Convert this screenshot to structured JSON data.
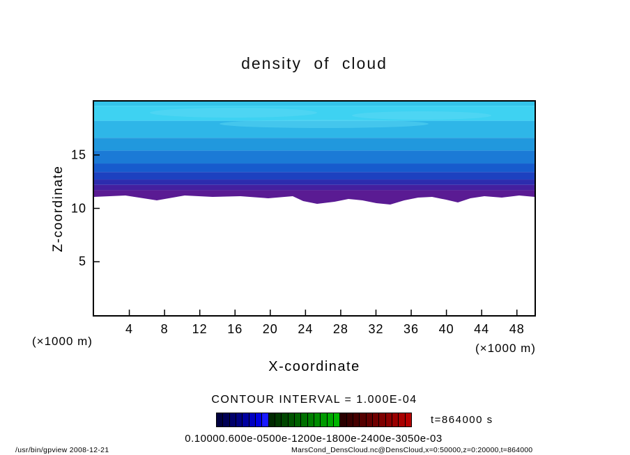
{
  "title": "density of cloud",
  "chart_data": {
    "type": "filled_contour",
    "title": "density of cloud",
    "xlabel": "X-coordinate",
    "ylabel": "Z-coordinate",
    "x_axis_units_left": "(×1000 m)",
    "x_axis_units_right": "(×1000 m)",
    "xlim": [
      0,
      50
    ],
    "ylim": [
      0,
      20
    ],
    "x_ticks": [
      4,
      8,
      12,
      16,
      20,
      24,
      28,
      32,
      36,
      40,
      44,
      48
    ],
    "y_ticks": [
      5,
      10,
      15
    ],
    "contour_interval_label": "CONTOUR INTERVAL = 1.000E-04",
    "time_label": "t=864000 s",
    "field_summary": "Cloud density layer spanning the full x range (0-50 ×1000 m) between z≈11 and z=20 (×1000 m). Density increases downward: ~1e-4 (light cyan) near the top z=20, through blue mid-levels, to ~1e-3 (dark violet) at the sharp, slightly wavy cloud base near z≈11; zero (white) below.",
    "bands": [
      {
        "z_top": 20.0,
        "z_bottom": 19.6,
        "color": "#34c4ea",
        "approx_value": "1.0e-04"
      },
      {
        "z_top": 19.6,
        "z_bottom": 18.2,
        "color": "#3ed2f2",
        "approx_value": "2.0e-04"
      },
      {
        "z_top": 18.2,
        "z_bottom": 16.6,
        "color": "#2eb6e8",
        "approx_value": "3.0e-04"
      },
      {
        "z_top": 16.6,
        "z_bottom": 15.4,
        "color": "#2198dd",
        "approx_value": "4.0e-04"
      },
      {
        "z_top": 15.4,
        "z_bottom": 14.2,
        "color": "#1b7ad6",
        "approx_value": "5.0e-04"
      },
      {
        "z_top": 14.2,
        "z_bottom": 13.4,
        "color": "#175bcd",
        "approx_value": "6.0e-04"
      },
      {
        "z_top": 13.4,
        "z_bottom": 12.7,
        "color": "#1d41c0",
        "approx_value": "7.0e-04"
      },
      {
        "z_top": 12.7,
        "z_bottom": 12.2,
        "color": "#2c2cae",
        "approx_value": "8.0e-04"
      },
      {
        "z_top": 12.2,
        "z_bottom": 11.7,
        "color": "#441f9f",
        "approx_value": "9.0e-04"
      },
      {
        "z_top": 11.7,
        "z_bottom": 11.1,
        "color": "#5a1b93",
        "approx_value": "1.0e-03",
        "fringe": true
      }
    ],
    "colorbar": {
      "colors": [
        "#000040",
        "#000055",
        "#00006a",
        "#000080",
        "#0000a0",
        "#0000c0",
        "#0000e0",
        "#1a1aff",
        "#002a00",
        "#003800",
        "#004600",
        "#005400",
        "#006200",
        "#007000",
        "#007e00",
        "#008c00",
        "#009a00",
        "#00a800",
        "#00b600",
        "#2a0000",
        "#380000",
        "#460000",
        "#540000",
        "#620000",
        "#700000",
        "#7e0000",
        "#8c0000",
        "#9a0000",
        "#a80000",
        "#b60000"
      ],
      "labels_text": "0.10000.600e-0500e-1200e-1800e-2400e-3050e-03"
    }
  },
  "footer": {
    "left": "/usr/bin/gpview   2008-12-21",
    "right": "MarsCond_DensCloud.nc@DensCloud,x=0:50000,z=0:20000,t=864000"
  }
}
